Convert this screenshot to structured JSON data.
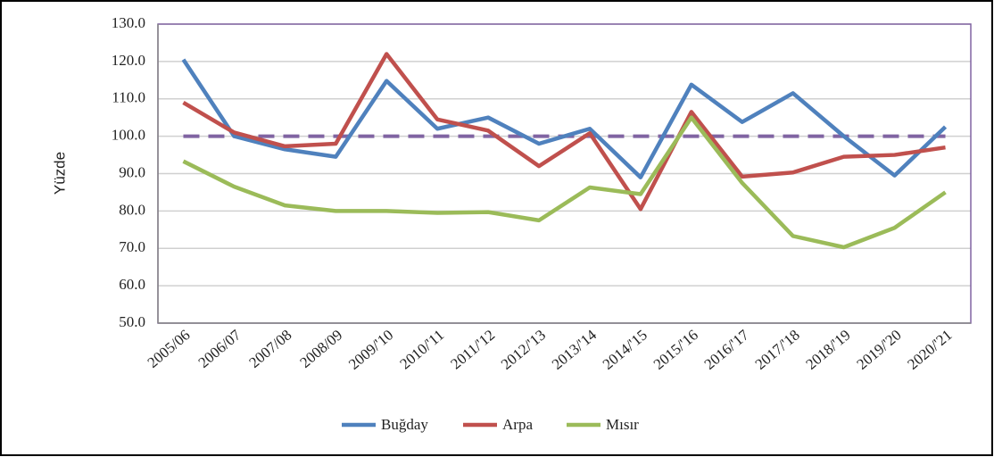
{
  "chart_data": {
    "type": "line",
    "ylabel": "Yüzde",
    "categories": [
      "2005/06",
      "2006/07",
      "2007/08",
      "2008/09",
      "2009/'10",
      "2010/'11",
      "2011/'12",
      "2012/'13",
      "2013/'14",
      "2014/'15",
      "2015/'16",
      "2016/'17",
      "2017/'18",
      "2018/'19",
      "2019/'20",
      "2020/'21"
    ],
    "series": [
      {
        "name": "Buğday",
        "color": "#4f81bd",
        "values": [
          120.5,
          100,
          96.5,
          94.5,
          114.8,
          102,
          105,
          98,
          102,
          89,
          113.8,
          103.8,
          111.5,
          100,
          89.5,
          102.5
        ]
      },
      {
        "name": "Arpa",
        "color": "#c0504d",
        "values": [
          109,
          101,
          97.3,
          98,
          122,
          104.5,
          101.5,
          92,
          100.8,
          80.5,
          106.5,
          89.2,
          90.3,
          94.5,
          95,
          97
        ]
      },
      {
        "name": "Mısır",
        "color": "#9bbb59",
        "values": [
          93.3,
          86.5,
          81.5,
          80,
          80,
          79.5,
          79.7,
          77.5,
          86.3,
          84.5,
          105,
          87.5,
          73.3,
          70.3,
          75.5,
          85
        ]
      }
    ],
    "reference_line": {
      "value": 100,
      "color": "#8064a2"
    },
    "ylim": [
      50,
      130
    ],
    "yticks": [
      {
        "value": 50,
        "label": "50.0"
      },
      {
        "value": 60,
        "label": "60.0"
      },
      {
        "value": 70,
        "label": "70.0"
      },
      {
        "value": 80,
        "label": "80.0"
      },
      {
        "value": 90,
        "label": "90.0"
      },
      {
        "value": 100,
        "label": "100.0"
      },
      {
        "value": 110,
        "label": "110.0"
      },
      {
        "value": 120,
        "label": "120.0"
      },
      {
        "value": 130,
        "label": "130.0"
      }
    ],
    "grid": true,
    "legend": "bottom"
  }
}
